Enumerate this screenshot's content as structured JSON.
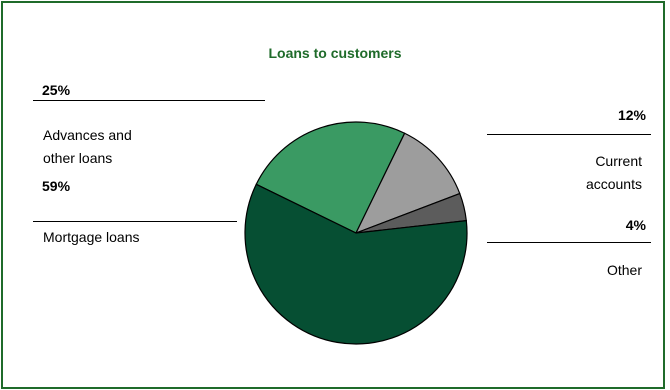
{
  "chart_data": {
    "type": "pie",
    "title": "Loans to customers",
    "slices": [
      {
        "label": "Advances and other loans",
        "value": 25,
        "value_label": "25%",
        "color": "#3a9a63"
      },
      {
        "label": "Current accounts",
        "value": 12,
        "value_label": "12%",
        "color": "#9d9d9d"
      },
      {
        "label": "Other",
        "value": 4,
        "value_label": "4%",
        "color": "#5c5c5c"
      },
      {
        "label": "Mortgage loans",
        "value": 59,
        "value_label": "59%",
        "color": "#064f33"
      }
    ],
    "start": "Mortgage/Advances boundary at left-upper, clockwise order: Advances, Current accounts, Other, Mortgage"
  },
  "labels": {
    "advances_line1": "Advances and",
    "advances_line2": "other loans",
    "current_line1": "Current",
    "current_line2": "accounts"
  }
}
